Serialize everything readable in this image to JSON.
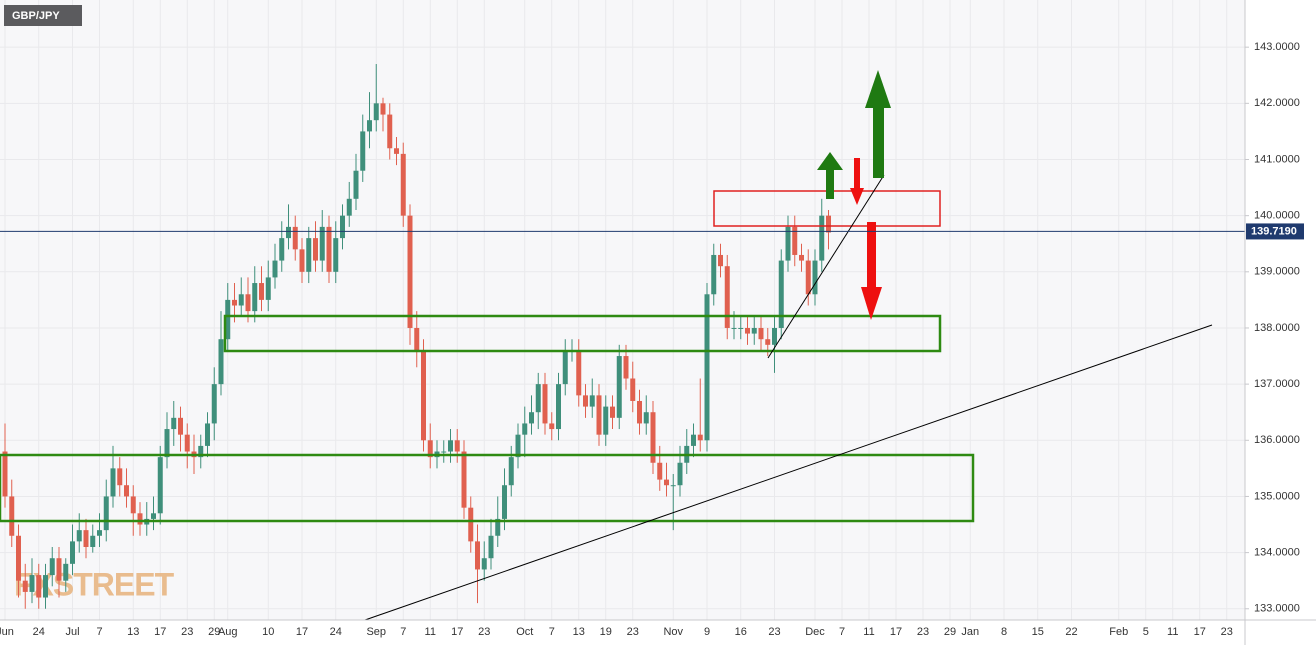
{
  "chart_data": {
    "type": "candlestick",
    "title": "GBP/JPY",
    "watermark": "FXSTREET",
    "up_color": "#3f8f7b",
    "down_color": "#e0604f",
    "ylim": [
      132.8,
      143.84
    ],
    "yticks": [
      {
        "value": 133,
        "label": "133.0000"
      },
      {
        "value": 134,
        "label": "134.0000"
      },
      {
        "value": 135,
        "label": "135.0000"
      },
      {
        "value": 136,
        "label": "136.0000"
      },
      {
        "value": 137,
        "label": "137.0000"
      },
      {
        "value": 138,
        "label": "138.0000"
      },
      {
        "value": 139,
        "label": "139.0000"
      },
      {
        "value": 140,
        "label": "140.0000"
      },
      {
        "value": 141,
        "label": "141.0000"
      },
      {
        "value": 142,
        "label": "142.0000"
      },
      {
        "value": 143,
        "label": "143.0000"
      }
    ],
    "last_price": {
      "value": 139.719,
      "label": "139.7190"
    },
    "grid": true,
    "categories": [
      "Jun",
      null,
      null,
      null,
      null,
      "24",
      null,
      null,
      null,
      null,
      "Jul",
      null,
      null,
      null,
      "7",
      null,
      null,
      null,
      null,
      "13",
      null,
      null,
      null,
      "17",
      null,
      null,
      null,
      "23",
      null,
      null,
      null,
      "29",
      null,
      "Aug",
      null,
      null,
      null,
      null,
      null,
      "10",
      null,
      null,
      null,
      null,
      "17",
      null,
      null,
      null,
      null,
      "24",
      null,
      null,
      null,
      null,
      null,
      "Sep",
      null,
      null,
      null,
      "7",
      null,
      null,
      null,
      "11",
      null,
      null,
      null,
      "17",
      null,
      null,
      null,
      "23",
      null,
      null,
      null,
      null,
      null,
      "Oct",
      null,
      null,
      null,
      "7",
      null,
      null,
      null,
      "13",
      null,
      null,
      null,
      "19",
      null,
      null,
      null,
      "23",
      null,
      null,
      null,
      null,
      null,
      "Nov",
      null,
      null,
      null,
      null,
      "9",
      null,
      null,
      null,
      null,
      "16",
      null,
      null,
      null,
      null,
      "23",
      null,
      null,
      null,
      null,
      null,
      "Dec",
      null,
      null,
      null,
      "7",
      null,
      null,
      null,
      "11",
      null,
      null,
      null,
      "17",
      null,
      null,
      null,
      "23",
      null,
      null,
      null,
      "29",
      null,
      null,
      "Jan",
      null,
      null,
      null,
      null,
      "8",
      null,
      null,
      null,
      null,
      "15",
      null,
      null,
      null,
      null,
      "22",
      null,
      null,
      null,
      null,
      null,
      null,
      "Feb",
      null,
      null,
      null,
      "5",
      null,
      null,
      null,
      "11",
      null,
      null,
      null,
      "17",
      null,
      null,
      null,
      "23"
    ],
    "open": [
      135.8,
      135.0,
      134.3,
      133.5,
      133.3,
      133.6,
      133.2,
      133.6,
      133.9,
      133.5,
      133.8,
      134.2,
      134.4,
      134.1,
      134.3,
      134.4,
      135.0,
      135.5,
      135.2,
      135.0,
      134.7,
      134.5,
      134.6,
      134.7,
      135.7,
      136.2,
      136.4,
      136.1,
      135.8,
      135.7,
      135.9,
      136.3,
      137.0,
      137.8,
      138.5,
      138.4,
      138.6,
      138.3,
      138.8,
      138.5,
      138.9,
      139.2,
      139.6,
      139.8,
      139.4,
      139.0,
      139.6,
      139.2,
      139.8,
      139.0,
      139.6,
      140.0,
      140.3,
      140.8,
      141.5,
      141.7,
      142.0,
      141.8,
      141.2,
      141.1,
      140.0,
      138.0,
      137.6,
      136.0,
      135.7,
      135.8,
      135.8,
      136.0,
      135.8,
      134.8,
      134.2,
      133.7,
      133.9,
      134.3,
      134.6,
      135.2,
      135.7,
      136.1,
      136.3,
      136.5,
      137.0,
      136.3,
      136.2,
      137.0,
      137.6,
      137.6,
      136.8,
      136.6,
      136.8,
      136.1,
      136.6,
      136.4,
      137.5,
      137.1,
      136.7,
      136.3,
      136.5,
      135.6,
      135.3,
      135.2,
      135.2,
      135.6,
      135.9,
      136.1,
      136.0,
      138.6,
      139.3,
      139.1,
      138.0,
      138.0,
      138.0,
      137.9,
      138.0,
      137.8,
      137.7,
      138.0,
      139.2,
      139.8,
      139.3,
      139.2,
      138.6,
      139.2,
      140.0,
      null,
      null,
      null,
      null,
      null,
      null,
      null,
      null,
      null,
      null,
      null,
      null,
      null,
      null,
      null,
      null,
      null,
      null,
      null,
      null,
      null,
      null,
      null,
      null,
      null,
      null,
      null,
      null,
      null,
      null,
      null,
      null,
      null,
      null,
      null,
      null,
      null,
      null,
      null,
      null,
      null,
      null,
      null,
      null,
      null,
      null,
      null,
      null,
      null,
      null,
      null,
      null,
      null,
      null,
      null,
      null,
      null,
      null,
      null
    ],
    "high": [
      136.3,
      135.3,
      134.5,
      133.8,
      133.9,
      133.8,
      133.8,
      134.1,
      134.1,
      133.9,
      134.5,
      134.7,
      134.6,
      134.5,
      134.7,
      135.3,
      135.9,
      135.7,
      135.5,
      135.2,
      134.9,
      134.9,
      135.0,
      135.9,
      136.5,
      136.7,
      136.6,
      136.3,
      136.1,
      136.1,
      136.5,
      137.3,
      138.3,
      138.8,
      138.8,
      138.9,
      138.9,
      139.1,
      139.1,
      139.2,
      139.5,
      139.9,
      140.2,
      140.0,
      139.6,
      139.8,
      139.9,
      140.1,
      140.0,
      139.9,
      140.2,
      140.6,
      141.1,
      141.8,
      142.2,
      142.7,
      142.1,
      142.0,
      141.4,
      141.3,
      140.2,
      138.3,
      137.8,
      136.3,
      136.0,
      136.0,
      136.2,
      136.2,
      136.0,
      135.0,
      134.5,
      134.2,
      134.6,
      135.0,
      135.5,
      135.9,
      136.3,
      136.6,
      136.8,
      137.2,
      137.2,
      136.5,
      137.2,
      137.8,
      137.8,
      137.8,
      137.0,
      137.1,
      137.0,
      136.8,
      136.8,
      137.7,
      137.7,
      137.4,
      136.9,
      136.8,
      136.7,
      135.9,
      135.6,
      135.4,
      135.9,
      136.2,
      136.3,
      137.1,
      138.8,
      139.5,
      139.5,
      139.3,
      138.3,
      138.2,
      138.2,
      138.2,
      138.2,
      138.0,
      138.2,
      139.4,
      140.0,
      140.0,
      139.5,
      139.4,
      139.4,
      140.3,
      140.1,
      null,
      null,
      null,
      null,
      null,
      null,
      null,
      null,
      null,
      null,
      null,
      null,
      null,
      null,
      null,
      null,
      null,
      null,
      null,
      null,
      null,
      null,
      null,
      null,
      null,
      null,
      null,
      null,
      null,
      null,
      null,
      null,
      null,
      null,
      null,
      null,
      null,
      null,
      null,
      null,
      null,
      null,
      null,
      null,
      null,
      null,
      null,
      null,
      null,
      null,
      null,
      null,
      null,
      null,
      null,
      null,
      null,
      null,
      null
    ],
    "low": [
      134.8,
      134.1,
      133.2,
      133.0,
      133.1,
      133.0,
      133.0,
      133.4,
      133.2,
      133.3,
      133.6,
      134.0,
      133.9,
      134.0,
      134.1,
      134.2,
      134.8,
      135.0,
      134.8,
      134.3,
      134.3,
      134.3,
      134.4,
      134.5,
      135.5,
      135.9,
      135.8,
      135.5,
      135.4,
      135.5,
      135.7,
      136.0,
      136.8,
      137.6,
      138.1,
      138.2,
      138.1,
      138.1,
      138.3,
      138.3,
      138.7,
      139.0,
      139.4,
      139.2,
      138.8,
      138.8,
      139.0,
      139.0,
      138.8,
      138.8,
      139.4,
      139.8,
      140.1,
      140.6,
      141.2,
      141.5,
      141.5,
      141.0,
      140.9,
      139.8,
      137.7,
      137.3,
      135.8,
      135.5,
      135.5,
      135.6,
      135.6,
      135.6,
      134.6,
      134.0,
      133.1,
      133.5,
      133.7,
      134.1,
      134.4,
      135.0,
      135.5,
      135.7,
      136.1,
      136.2,
      136.1,
      136.0,
      136.0,
      136.8,
      137.4,
      136.6,
      136.4,
      136.4,
      135.9,
      135.9,
      136.2,
      136.2,
      136.9,
      136.5,
      136.1,
      136.1,
      135.4,
      135.1,
      135.0,
      134.4,
      135.0,
      135.4,
      135.7,
      135.8,
      135.8,
      138.4,
      138.9,
      137.8,
      137.8,
      137.8,
      137.7,
      137.7,
      137.6,
      137.5,
      137.2,
      137.8,
      139.0,
      139.1,
      139.0,
      138.4,
      138.4,
      139.0,
      139.4,
      null,
      null,
      null,
      null,
      null,
      null,
      null,
      null,
      null,
      null,
      null,
      null,
      null,
      null,
      null,
      null,
      null,
      null,
      null,
      null,
      null,
      null,
      null,
      null,
      null,
      null,
      null,
      null,
      null,
      null,
      null,
      null,
      null,
      null,
      null,
      null,
      null,
      null,
      null,
      null,
      null,
      null,
      null,
      null,
      null,
      null,
      null,
      null,
      null,
      null,
      null,
      null,
      null,
      null,
      null,
      null,
      null,
      null,
      null
    ],
    "close": [
      135.0,
      134.3,
      133.5,
      133.3,
      133.6,
      133.2,
      133.6,
      133.9,
      133.5,
      133.8,
      134.2,
      134.4,
      134.1,
      134.3,
      134.4,
      135.0,
      135.5,
      135.2,
      135.0,
      134.7,
      134.5,
      134.6,
      134.7,
      135.7,
      136.2,
      136.4,
      136.1,
      135.8,
      135.7,
      135.9,
      136.3,
      137.0,
      137.8,
      138.5,
      138.4,
      138.6,
      138.3,
      138.8,
      138.5,
      138.9,
      139.2,
      139.6,
      139.8,
      139.4,
      139.0,
      139.6,
      139.2,
      139.8,
      139.0,
      139.6,
      140.0,
      140.3,
      140.8,
      141.5,
      141.7,
      142.0,
      141.8,
      141.2,
      141.1,
      140.0,
      138.0,
      137.6,
      136.0,
      135.7,
      135.8,
      135.8,
      136.0,
      135.8,
      134.8,
      134.2,
      133.7,
      133.9,
      134.3,
      134.6,
      135.2,
      135.7,
      136.1,
      136.3,
      136.5,
      137.0,
      136.3,
      136.2,
      137.0,
      137.6,
      137.6,
      136.8,
      136.6,
      136.8,
      136.1,
      136.6,
      136.4,
      137.5,
      137.1,
      136.7,
      136.3,
      136.5,
      135.6,
      135.3,
      135.2,
      135.2,
      135.6,
      135.9,
      136.1,
      136.0,
      138.6,
      139.3,
      139.1,
      138.0,
      138.0,
      138.0,
      137.9,
      138.0,
      137.8,
      137.7,
      138.0,
      139.2,
      139.8,
      139.3,
      139.2,
      138.6,
      139.2,
      140.0,
      139.7,
      null,
      null,
      null,
      null,
      null,
      null,
      null,
      null,
      null,
      null,
      null,
      null,
      null,
      null,
      null,
      null,
      null,
      null,
      null,
      null,
      null,
      null,
      null,
      null,
      null,
      null,
      null,
      null,
      null,
      null,
      null,
      null,
      null,
      null,
      null,
      null,
      null,
      null,
      null,
      null,
      null,
      null,
      null,
      null,
      null,
      null,
      null,
      null,
      null,
      null,
      null,
      null,
      null,
      null,
      null,
      null,
      null,
      null,
      null
    ]
  }
}
